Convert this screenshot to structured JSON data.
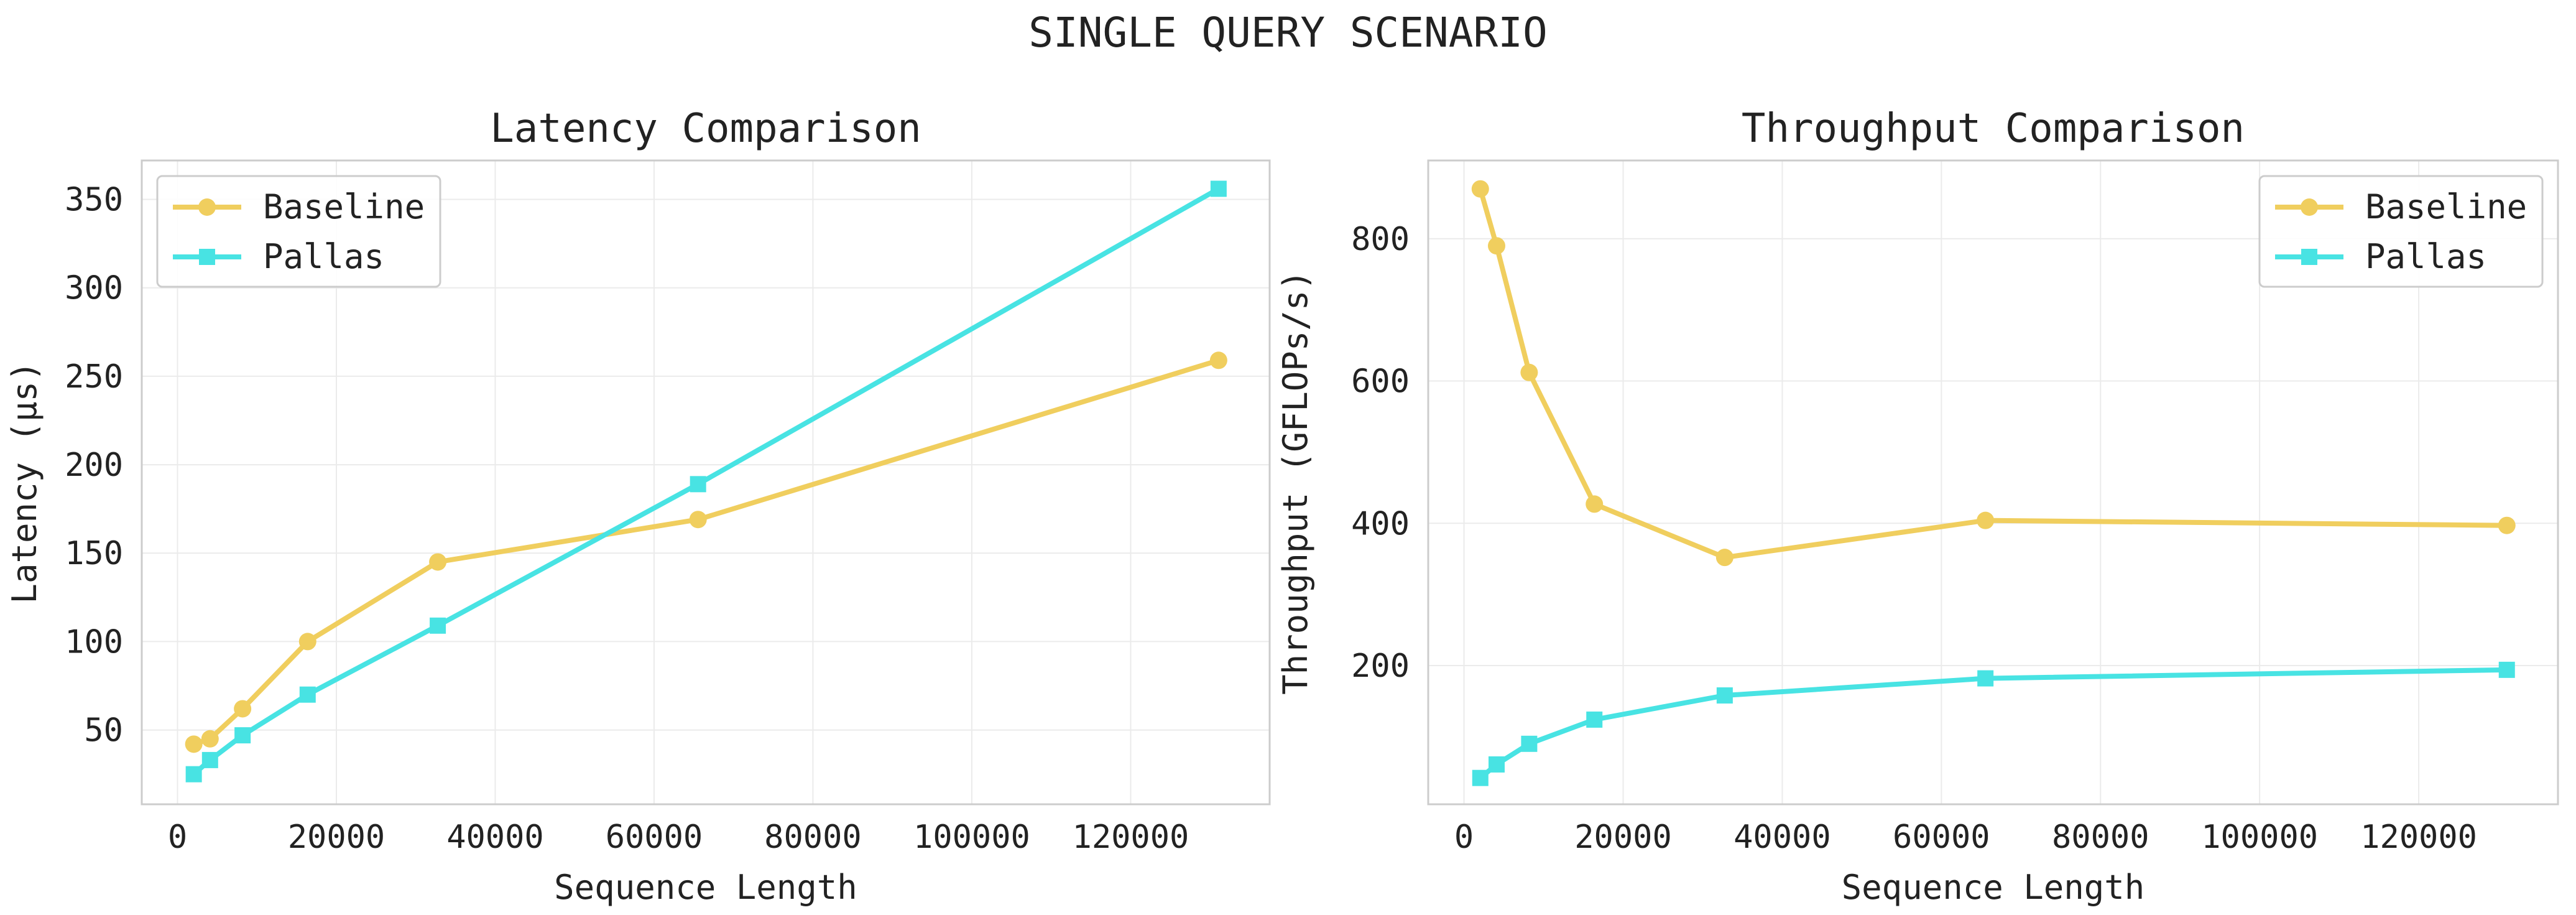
{
  "figure": {
    "suptitle": "SINGLE QUERY SCENARIO"
  },
  "colors": {
    "baseline": "#F0CE5E",
    "pallas": "#48E3E3",
    "grid": "#EBEBEB",
    "spine": "#CCCCCC",
    "text": "#222222"
  },
  "chart_data": [
    {
      "type": "line",
      "title": "Latency Comparison",
      "xlabel": "Sequence Length",
      "ylabel": "Latency (µs)",
      "xlim": [
        -4500,
        137500
      ],
      "ylim": [
        8,
        372
      ],
      "xticks": [
        0,
        20000,
        40000,
        60000,
        80000,
        100000,
        120000
      ],
      "yticks": [
        50,
        100,
        150,
        200,
        250,
        300,
        350
      ],
      "grid": true,
      "legend_loc": "upper left",
      "x": [
        2048,
        4096,
        8192,
        16384,
        32768,
        65536,
        131072
      ],
      "series": [
        {
          "name": "Baseline",
          "marker": "circle",
          "color": "#F0CE5E",
          "values": [
            42,
            45,
            62,
            100,
            145,
            169,
            259
          ]
        },
        {
          "name": "Pallas",
          "marker": "square",
          "color": "#48E3E3",
          "values": [
            25,
            33,
            47,
            70,
            109,
            189,
            356
          ]
        }
      ]
    },
    {
      "type": "line",
      "title": "Throughput Comparison",
      "xlabel": "Sequence Length",
      "ylabel": "Throughput (GFLOPs/s)",
      "xlim": [
        -4500,
        137500
      ],
      "ylim": [
        5,
        910
      ],
      "xticks": [
        0,
        20000,
        40000,
        60000,
        80000,
        100000,
        120000
      ],
      "yticks": [
        200,
        400,
        600,
        800
      ],
      "grid": true,
      "legend_loc": "upper right",
      "x": [
        2048,
        4096,
        8192,
        16384,
        32768,
        65536,
        131072
      ],
      "series": [
        {
          "name": "Baseline",
          "marker": "circle",
          "color": "#F0CE5E",
          "values": [
            870,
            790,
            612,
            427,
            352,
            404,
            397
          ]
        },
        {
          "name": "Pallas",
          "marker": "square",
          "color": "#48E3E3",
          "values": [
            42,
            61,
            90,
            124,
            158,
            182,
            194
          ]
        }
      ]
    }
  ]
}
